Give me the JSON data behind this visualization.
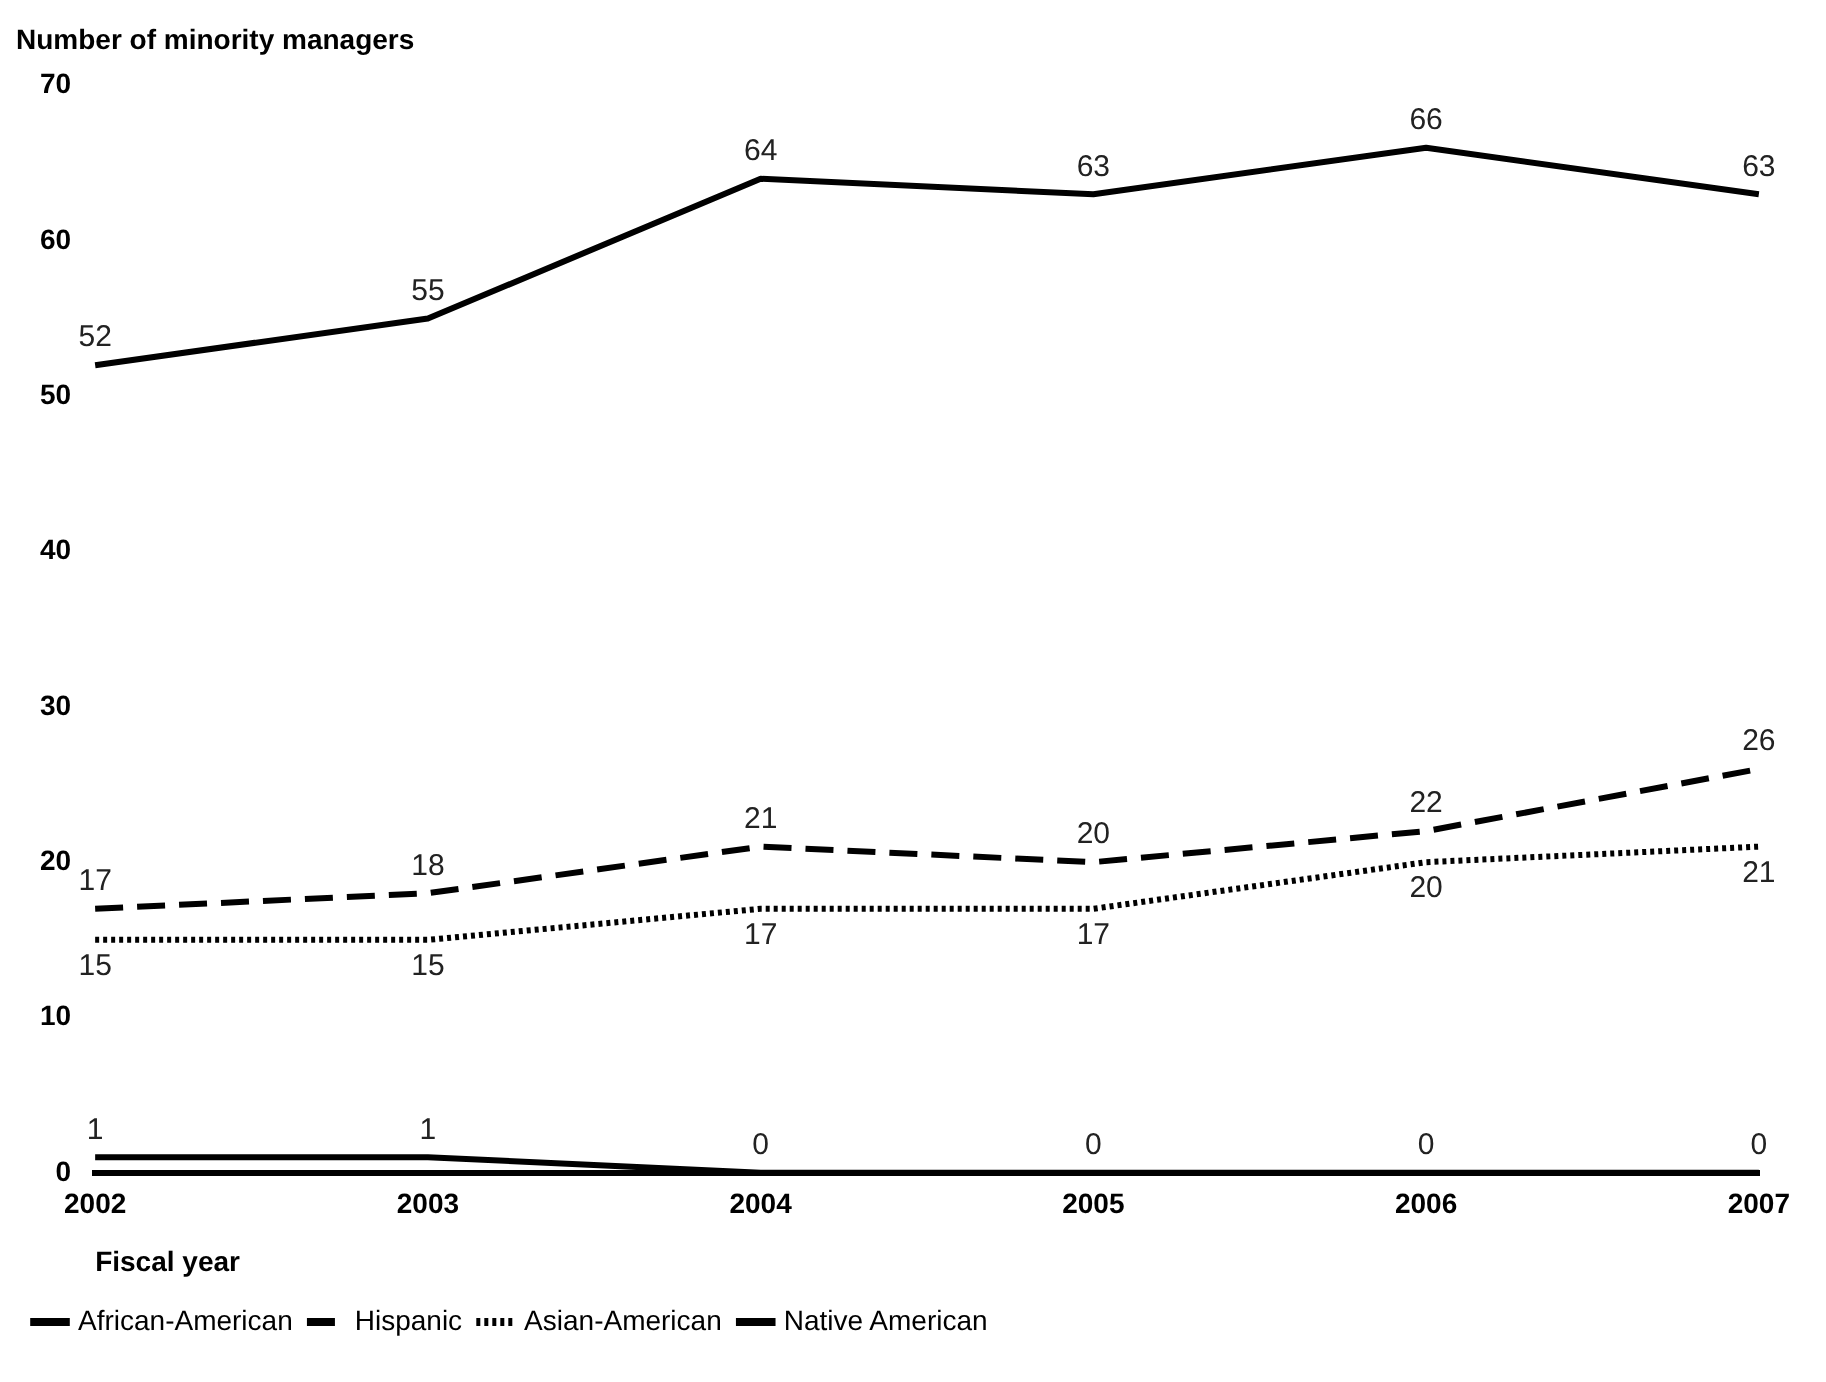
{
  "chart_data": {
    "type": "line",
    "ylabel": "Number of minority managers",
    "xlabel": "Fiscal year",
    "categories": [
      "2002",
      "2003",
      "2004",
      "2005",
      "2006",
      "2007"
    ],
    "series": [
      {
        "name": "African-American",
        "color": "#000000",
        "line_style": "solid",
        "values": [
          52,
          55,
          64,
          63,
          66,
          63
        ]
      },
      {
        "name": "Hispanic",
        "color": "#000000",
        "line_style": "dashed",
        "values": [
          17,
          18,
          21,
          20,
          22,
          26
        ]
      },
      {
        "name": "Asian-American",
        "color": "#000000",
        "line_style": "dotted",
        "values": [
          15,
          15,
          17,
          17,
          20,
          21
        ]
      },
      {
        "name": "Native American",
        "color": "#000000",
        "line_style": "solid",
        "values": [
          1,
          1,
          0,
          0,
          0,
          0
        ]
      }
    ],
    "ylim": [
      0,
      70
    ],
    "yticks": [
      0,
      10,
      20,
      30,
      40,
      50,
      60,
      70
    ],
    "grid": false,
    "legend": "bottom",
    "marker": "none",
    "data_labels": true
  }
}
